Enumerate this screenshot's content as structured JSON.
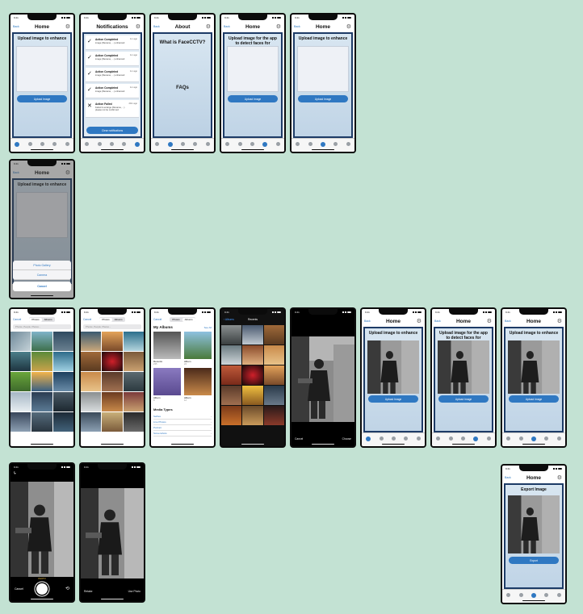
{
  "colors": {
    "background": "#c3e2d3",
    "accent": "#2f78c2",
    "panel": "#1d3b66"
  },
  "common": {
    "status_time": "9:41",
    "back": "Back",
    "home_title": "Home",
    "upload_enhance": "Upload image to enhance",
    "upload_detect": "Upload image for the app to detect faces for",
    "upload_button": "Upload Image",
    "gear_icon": "gear-icon"
  },
  "notifications": {
    "title": "Notifications",
    "items": [
      {
        "title": "Action Completed",
        "desc": "image (filename, ...) enhanced",
        "time": "1m ago",
        "icon": "check-icon"
      },
      {
        "title": "Action Completed",
        "desc": "image (filename, ...) enhanced",
        "time": "1m ago",
        "icon": "check-icon"
      },
      {
        "title": "Action Completed",
        "desc": "image (filename, ...) enhanced",
        "time": "1m ago",
        "icon": "check-icon"
      },
      {
        "title": "Action Completed",
        "desc": "image (filename, ...) enhanced",
        "time": "1m ago",
        "icon": "check-icon"
      },
      {
        "title": "Action Failed",
        "desc": "Failed to enlarge (filename, ...) please not be confirmed",
        "time": "20m ago",
        "icon": "x-icon"
      }
    ],
    "clear_button": "Clear notifications"
  },
  "about": {
    "title": "About",
    "question": "What is FaceCCTV?",
    "faqs": "FAQs"
  },
  "action_sheet": {
    "options": [
      "Photo Gallery",
      "Camera"
    ],
    "cancel": "Cancel"
  },
  "picker": {
    "cancel": "Cancel",
    "seg_photos": "Photos",
    "seg_albums": "Albums",
    "search_placeholder": "Photos, People, Places...",
    "my_albums": "My Albums",
    "see_all": "See All",
    "albums": [
      {
        "name": "Recents",
        "count": "235"
      },
      {
        "name": "Album",
        "count": "24"
      },
      {
        "name": "Album",
        "count": "8"
      },
      {
        "name": "Album",
        "count": "12"
      }
    ],
    "media_types_title": "Media Types",
    "media_types": [
      "Selfies",
      "Live Photos",
      "Portrait",
      "Screenshots"
    ],
    "albums_back": "Albums",
    "recents": "Recents"
  },
  "choose": {
    "cancel": "Cancel",
    "choose": "Choose"
  },
  "camera": {
    "mode": "PHOTO",
    "cancel": "Cancel",
    "retake": "Retake",
    "use_photo": "Use Photo"
  },
  "export": {
    "title": "Export Image",
    "button": "Export"
  }
}
